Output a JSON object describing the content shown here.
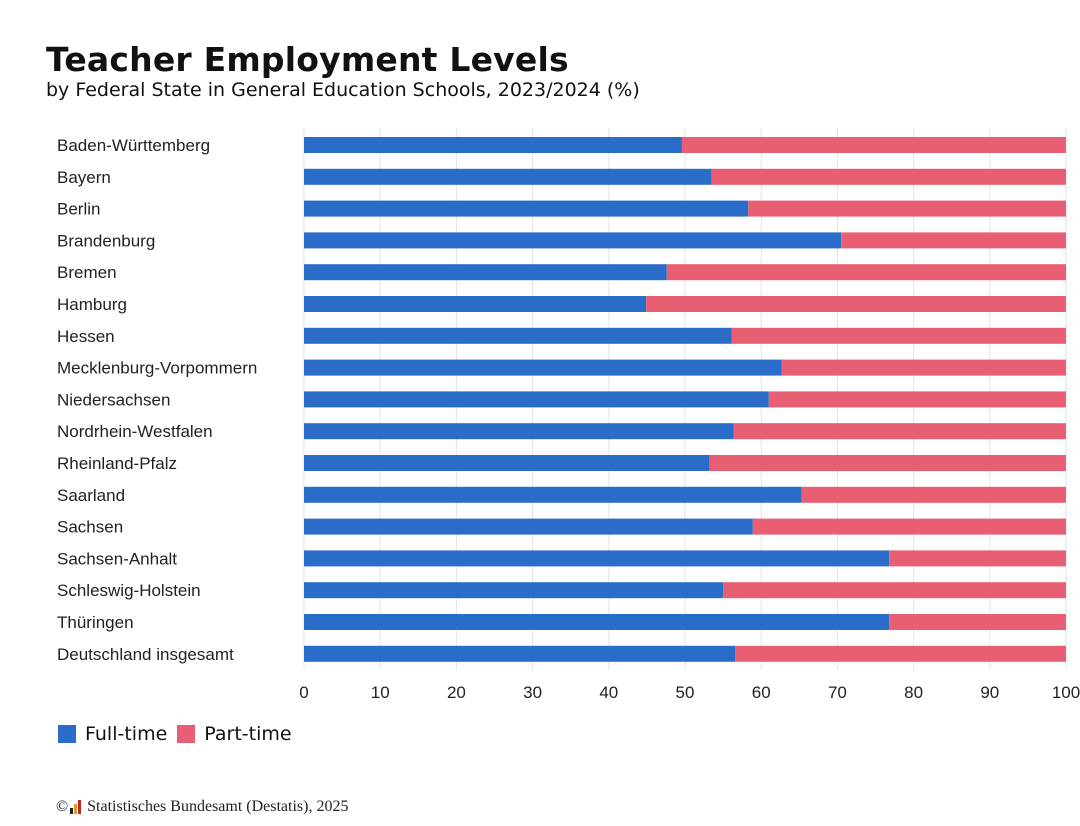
{
  "title": "Teacher Employment Levels",
  "subtitle": "by Federal State in General Education Schools, 2023/2024 (%)",
  "legend": {
    "full_time": "Full-time",
    "part_time": "Part-time"
  },
  "source": {
    "copyright": "©",
    "text": "Statistisches Bundesamt (Destatis), 2025"
  },
  "colors": {
    "full_time": "#2a6dc8",
    "part_time": "#e85e72",
    "grid": "#e3e3e3"
  },
  "chart_data": {
    "type": "bar",
    "orientation": "horizontal",
    "stacked": true,
    "categories": [
      "Baden-Württemberg",
      "Bayern",
      "Berlin",
      "Brandenburg",
      "Bremen",
      "Hamburg",
      "Hessen",
      "Mecklenburg-Vorpommern",
      "Niedersachsen",
      "Nordrhein-Westfalen",
      "Rheinland-Pfalz",
      "Saarland",
      "Sachsen",
      "Sachsen-Anhalt",
      "Schleswig-Holstein",
      "Thüringen",
      "Deutschland insgesamt"
    ],
    "series": [
      {
        "name": "Full-time",
        "values": [
          49.6,
          53.5,
          58.3,
          70.5,
          47.6,
          44.9,
          56.1,
          62.7,
          61.0,
          56.4,
          53.2,
          65.3,
          58.9,
          76.8,
          55.0,
          76.8,
          56.6
        ]
      },
      {
        "name": "Part-time",
        "values": [
          50.4,
          46.5,
          41.7,
          29.5,
          52.4,
          55.1,
          43.9,
          37.3,
          39.0,
          43.6,
          46.8,
          34.7,
          41.1,
          23.2,
          45.0,
          23.2,
          43.4
        ]
      }
    ],
    "xlim": [
      0,
      100
    ],
    "xticks": [
      0,
      10,
      20,
      30,
      40,
      50,
      60,
      70,
      80,
      90,
      100
    ],
    "grid": true,
    "legend_position": "bottom-left"
  }
}
